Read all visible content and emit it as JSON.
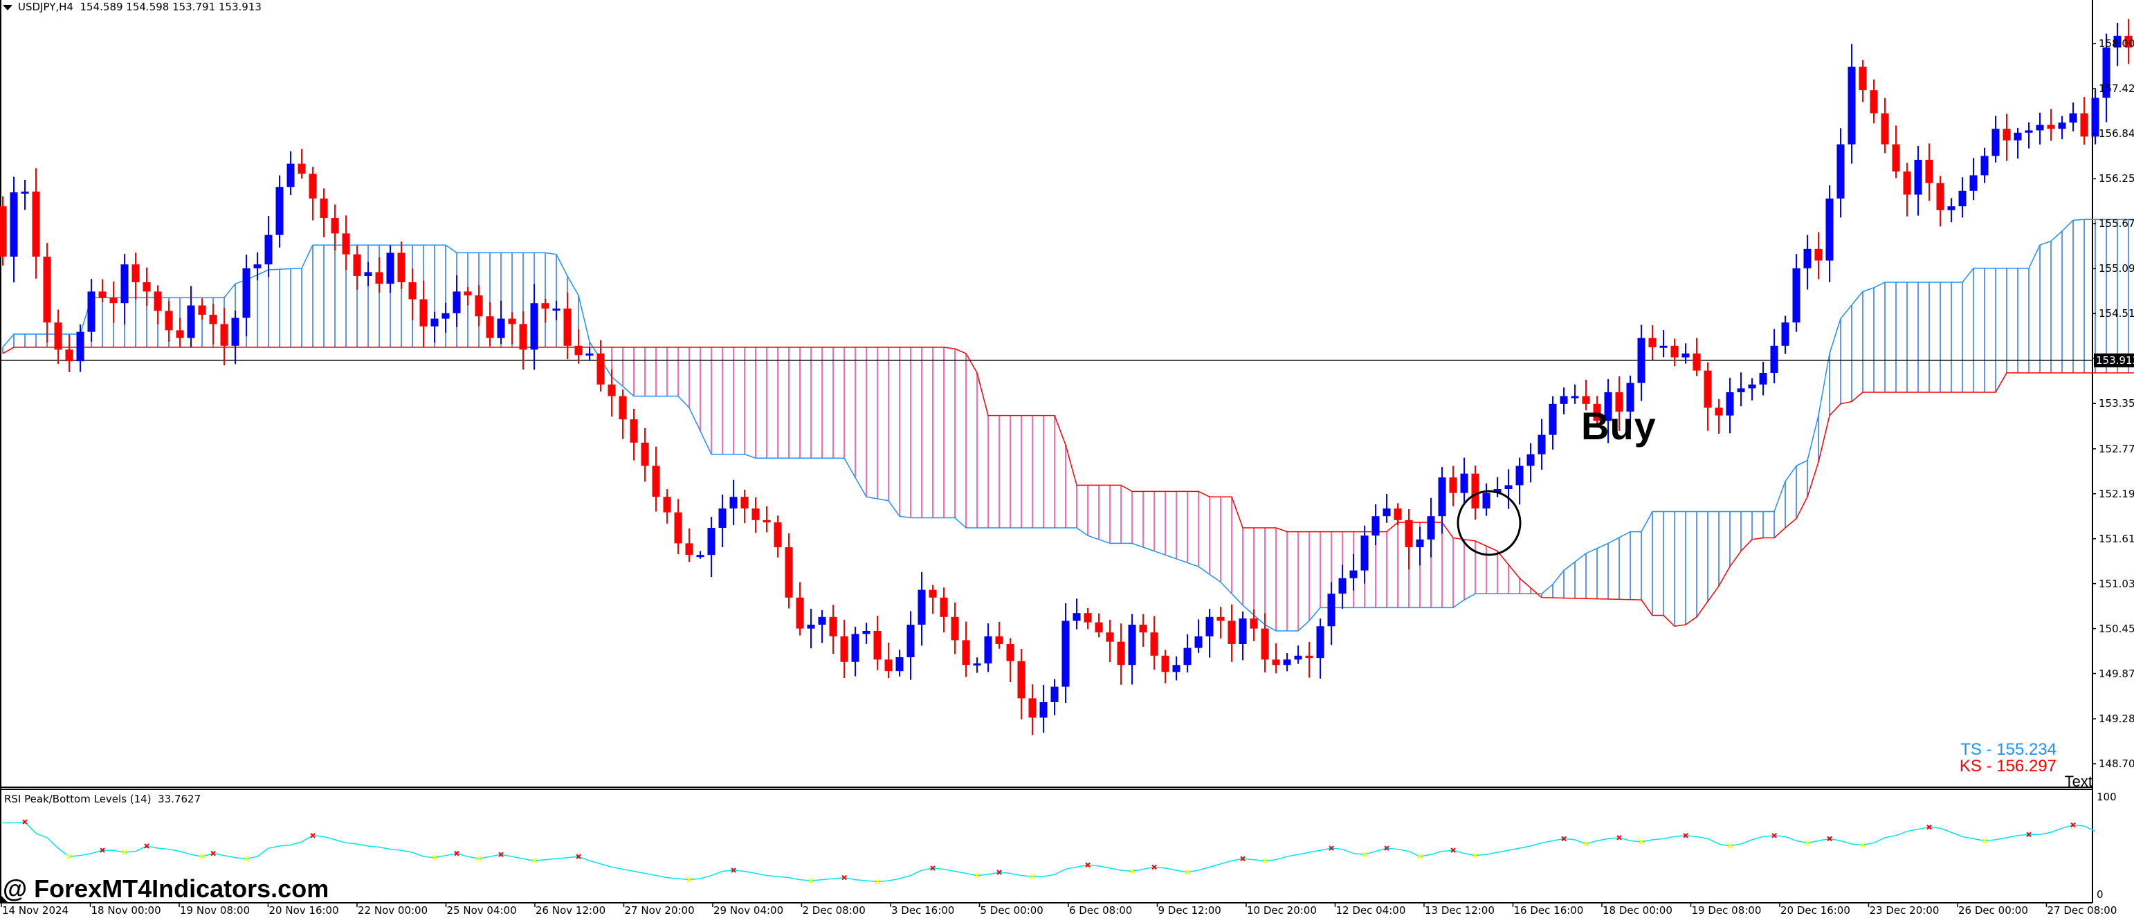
{
  "header": {
    "symbol": "USDJPY,H4",
    "ohlc": "154.589 154.598 153.791 153.913"
  },
  "colors": {
    "bull": "#0000ff",
    "bear": "#ff0000",
    "cloud_bull": "#6495ed",
    "cloud_bear": "#ff69b4",
    "senkou_a": "#1e90ff",
    "senkou_b": "#ff0000",
    "rsi_line": "#00e5ee",
    "rsi_peak": "#ff0000",
    "rsi_bottom": "#ffff00"
  },
  "price_axis": {
    "labels": [
      "158.000",
      "157.420",
      "156.840",
      "156.255",
      "155.675",
      "155.095",
      "154.515",
      "153.935",
      "153.355",
      "152.770",
      "152.190",
      "151.610",
      "151.030",
      "150.450",
      "149.870",
      "149.285",
      "148.705"
    ],
    "current_price": "153.913"
  },
  "annotations": {
    "buy_label": "Buy",
    "ts_label": "TS - 155.234",
    "ks_label": "KS - 156.297",
    "text_label": "Text",
    "watermark": "@ ForexMT4Indicators.com"
  },
  "rsi": {
    "title": "RSI Peak/Bottom Levels (14)  33.7627",
    "y_max": "100",
    "y_min": "0"
  },
  "time_axis": {
    "labels": [
      "14 Nov 2024",
      "18 Nov 00:00",
      "19 Nov 08:00",
      "20 Nov 16:00",
      "22 Nov 00:00",
      "25 Nov 04:00",
      "26 Nov 12:00",
      "27 Nov 20:00",
      "29 Nov 04:00",
      "2 Dec 08:00",
      "3 Dec 16:00",
      "5 Dec 00:00",
      "6 Dec 08:00",
      "9 Dec 12:00",
      "10 Dec 20:00",
      "12 Dec 04:00",
      "13 Dec 12:00",
      "16 Dec 16:00",
      "18 Dec 00:00",
      "19 Dec 08:00",
      "20 Dec 16:00",
      "23 Dec 20:00",
      "26 Dec 00:00",
      "27 Dec 08:00"
    ]
  },
  "chart_data": {
    "type": "candlestick",
    "title": "USDJPY,H4",
    "indicators": [
      "Ichimoku Kumo (Senkou A/B)",
      "RSI Peak/Bottom Levels (14)"
    ],
    "ylim": [
      148.4,
      158.55
    ],
    "current_price": 153.913,
    "closes": [
      155.25,
      156.08,
      156.09,
      155.25,
      154.4,
      154.05,
      153.9,
      154.28,
      154.8,
      154.72,
      154.65,
      155.15,
      154.92,
      154.8,
      154.55,
      154.3,
      154.2,
      154.62,
      154.5,
      154.38,
      154.1,
      154.46,
      155.1,
      155.15,
      155.53,
      156.15,
      156.45,
      156.32,
      156.0,
      155.75,
      155.55,
      155.28,
      155.0,
      155.05,
      154.9,
      155.3,
      154.92,
      154.7,
      154.35,
      154.45,
      154.52,
      154.8,
      154.75,
      154.48,
      154.2,
      154.45,
      154.38,
      154.05,
      154.65,
      154.58,
      154.58,
      154.1,
      153.98,
      154.0,
      153.6,
      153.45,
      153.15,
      152.85,
      152.55,
      152.15,
      151.95,
      151.55,
      151.4,
      151.4,
      151.75,
      152.0,
      152.15,
      152.0,
      151.85,
      151.82,
      151.5,
      150.85,
      150.45,
      150.5,
      150.6,
      150.35,
      150.02,
      150.38,
      150.42,
      150.05,
      149.9,
      150.08,
      150.5,
      150.95,
      150.85,
      150.6,
      150.3,
      149.98,
      150.0,
      150.35,
      150.25,
      150.03,
      149.55,
      149.3,
      149.5,
      149.7,
      150.55,
      150.65,
      150.53,
      150.4,
      150.28,
      149.98,
      150.5,
      150.4,
      150.1,
      149.89,
      149.98,
      150.2,
      150.35,
      150.6,
      150.55,
      150.25,
      150.58,
      150.45,
      150.05,
      149.98,
      150.05,
      150.1,
      150.07,
      150.48,
      150.9,
      151.1,
      151.2,
      151.65,
      151.9,
      152.0,
      151.85,
      151.5,
      151.6,
      151.9,
      152.4,
      152.2,
      152.45,
      152.0,
      152.2,
      152.25,
      152.3,
      152.55,
      152.7,
      152.95,
      153.35,
      153.45,
      153.45,
      153.35,
      153.13,
      153.5,
      153.25,
      153.62,
      154.2,
      154.08,
      154.1,
      153.95,
      154.0,
      153.78,
      153.3,
      153.2,
      153.5,
      153.55,
      153.6,
      153.75,
      154.1,
      154.4,
      155.1,
      155.35,
      155.2,
      156.0,
      156.7,
      157.7,
      157.4,
      157.1,
      156.7,
      156.35,
      156.05,
      156.5,
      156.2,
      155.85,
      155.9,
      156.1,
      156.3,
      156.55,
      156.9,
      156.75,
      156.85,
      156.88,
      156.95,
      156.9,
      156.98,
      157.1,
      156.8,
      157.3,
      157.95,
      158.1,
      157.95,
      157.55,
      157.78,
      157.7,
      157.55,
      157.75,
      157.85
    ],
    "x_labels": [
      "14 Nov 2024",
      "18 Nov 00:00",
      "19 Nov 08:00",
      "20 Nov 16:00",
      "22 Nov 00:00",
      "25 Nov 04:00",
      "26 Nov 12:00",
      "27 Nov 20:00",
      "29 Nov 04:00",
      "2 Dec 08:00",
      "3 Dec 16:00",
      "5 Dec 00:00",
      "6 Dec 08:00",
      "9 Dec 12:00",
      "10 Dec 20:00",
      "12 Dec 04:00",
      "13 Dec 12:00",
      "16 Dec 16:00",
      "18 Dec 00:00",
      "19 Dec 08:00",
      "20 Dec 16:00",
      "23 Dec 20:00",
      "26 Dec 00:00",
      "27 Dec 08:00"
    ],
    "y_ticks": [
      158.0,
      157.42,
      156.84,
      156.255,
      155.675,
      155.095,
      154.515,
      153.935,
      153.355,
      152.77,
      152.19,
      151.61,
      151.03,
      150.45,
      149.87,
      149.285,
      148.705
    ],
    "cloud": {
      "senkou_a": [
        [
          0,
          154.08
        ],
        [
          1,
          154.25
        ],
        [
          7,
          154.25
        ],
        [
          8,
          154.72
        ],
        [
          20,
          154.72
        ],
        [
          21,
          154.9
        ],
        [
          22,
          154.95
        ],
        [
          24,
          155.08
        ],
        [
          27,
          155.1
        ],
        [
          28,
          155.4
        ],
        [
          40,
          155.4
        ],
        [
          41,
          155.3
        ],
        [
          49,
          155.3
        ],
        [
          50,
          155.28
        ],
        [
          51,
          155.0
        ],
        [
          52,
          154.75
        ],
        [
          53,
          154.15
        ],
        [
          55,
          153.7
        ],
        [
          57,
          153.45
        ],
        [
          61,
          153.45
        ],
        [
          62,
          153.3
        ],
        [
          64,
          152.7
        ],
        [
          67,
          152.7
        ],
        [
          68,
          152.65
        ],
        [
          76,
          152.65
        ],
        [
          77,
          152.4
        ],
        [
          78,
          152.15
        ],
        [
          80,
          152.1
        ],
        [
          81,
          151.9
        ],
        [
          82,
          151.88
        ],
        [
          86,
          151.88
        ],
        [
          87,
          151.75
        ],
        [
          97,
          151.75
        ],
        [
          98,
          151.65
        ],
        [
          100,
          151.55
        ],
        [
          102,
          151.55
        ],
        [
          103,
          151.5
        ],
        [
          104,
          151.45
        ],
        [
          106,
          151.35
        ],
        [
          108,
          151.25
        ],
        [
          110,
          151.05
        ],
        [
          112,
          150.75
        ],
        [
          114,
          150.5
        ],
        [
          115,
          150.42
        ],
        [
          117,
          150.42
        ],
        [
          118,
          150.55
        ],
        [
          119,
          150.72
        ],
        [
          131,
          150.72
        ],
        [
          132,
          150.82
        ],
        [
          133,
          150.9
        ],
        [
          139,
          150.9
        ],
        [
          140,
          151.02
        ],
        [
          141,
          151.2
        ],
        [
          143,
          151.42
        ],
        [
          145,
          151.55
        ],
        [
          147,
          151.7
        ],
        [
          148,
          151.7
        ],
        [
          149,
          151.96
        ],
        [
          160,
          151.96
        ],
        [
          161,
          152.35
        ],
        [
          162,
          152.55
        ],
        [
          163,
          152.62
        ],
        [
          164,
          153.2
        ],
        [
          165,
          154.0
        ],
        [
          166,
          154.45
        ],
        [
          168,
          154.8
        ],
        [
          169,
          154.85
        ],
        [
          170,
          154.92
        ],
        [
          177,
          154.92
        ],
        [
          178,
          155.1
        ],
        [
          179,
          155.1
        ],
        [
          183,
          155.1
        ],
        [
          184,
          155.4
        ],
        [
          185,
          155.45
        ],
        [
          186,
          155.58
        ],
        [
          187,
          155.72
        ],
        [
          188,
          155.73
        ]
      ],
      "senkou_b": [
        [
          0,
          154.0
        ],
        [
          1,
          154.08
        ],
        [
          85,
          154.08
        ],
        [
          86,
          154.06
        ],
        [
          87,
          154.0
        ],
        [
          88,
          153.75
        ],
        [
          89,
          153.2
        ],
        [
          90,
          153.2
        ],
        [
          95,
          153.2
        ],
        [
          96,
          152.82
        ],
        [
          97,
          152.3
        ],
        [
          98,
          152.3
        ],
        [
          101,
          152.3
        ],
        [
          102,
          152.22
        ],
        [
          108,
          152.22
        ],
        [
          109,
          152.15
        ],
        [
          111,
          152.15
        ],
        [
          112,
          151.75
        ],
        [
          115,
          151.75
        ],
        [
          116,
          151.7
        ],
        [
          125,
          151.7
        ],
        [
          126,
          151.82
        ],
        [
          130,
          151.82
        ],
        [
          131,
          151.62
        ],
        [
          133,
          151.58
        ],
        [
          135,
          151.45
        ],
        [
          137,
          151.1
        ],
        [
          139,
          150.85
        ],
        [
          148,
          150.82
        ],
        [
          149,
          150.62
        ],
        [
          150,
          150.62
        ],
        [
          151,
          150.48
        ],
        [
          152,
          150.5
        ],
        [
          153,
          150.6
        ],
        [
          154,
          150.8
        ],
        [
          155,
          151.0
        ],
        [
          156,
          151.25
        ],
        [
          157,
          151.45
        ],
        [
          158,
          151.6
        ],
        [
          159,
          151.62
        ],
        [
          160,
          151.62
        ],
        [
          161,
          151.75
        ],
        [
          162,
          151.87
        ],
        [
          163,
          152.15
        ],
        [
          164,
          152.6
        ],
        [
          165,
          153.2
        ],
        [
          166,
          153.35
        ],
        [
          167,
          153.38
        ],
        [
          168,
          153.5
        ],
        [
          169,
          153.5
        ],
        [
          177,
          153.5
        ],
        [
          178,
          153.5
        ],
        [
          180,
          153.5
        ],
        [
          181,
          153.75
        ],
        [
          188,
          153.75
        ]
      ]
    },
    "rsi_series": [
      72,
      72,
      73,
      62,
      58,
      48,
      40,
      41,
      43,
      46,
      46,
      44,
      45,
      50,
      48,
      47,
      45,
      42,
      40,
      43,
      41,
      39,
      38,
      40,
      48,
      50,
      51,
      54,
      60,
      59,
      56,
      53,
      52,
      50,
      49,
      47,
      46,
      44,
      40,
      39,
      41,
      43,
      40,
      38,
      40,
      42,
      40,
      38,
      36,
      37,
      38,
      39,
      40,
      36,
      33,
      30,
      28,
      26,
      24,
      22,
      20,
      19,
      18,
      19,
      22,
      26,
      27,
      26,
      24,
      22,
      21,
      20,
      18,
      17,
      18,
      19,
      20,
      18,
      17,
      16,
      17,
      19,
      22,
      27,
      29,
      28,
      26,
      24,
      22,
      23,
      25,
      24,
      22,
      21,
      21,
      23,
      28,
      30,
      32,
      31,
      29,
      27,
      26,
      28,
      30,
      29,
      27,
      25,
      27,
      30,
      33,
      36,
      38,
      37,
      36,
      37,
      40,
      42,
      44,
      46,
      48,
      47,
      43,
      42,
      45,
      48,
      47,
      45,
      40,
      42,
      45,
      46,
      43,
      41,
      42,
      44,
      46,
      48,
      50,
      53,
      55,
      57,
      56,
      52,
      55,
      57,
      58,
      55,
      54,
      56,
      57,
      59,
      60,
      59,
      57,
      52,
      50,
      52,
      56,
      59,
      60,
      59,
      55,
      53,
      55,
      57,
      55,
      52,
      51,
      53,
      58,
      60,
      64,
      66,
      68,
      67,
      63,
      59,
      57,
      55,
      56,
      58,
      60,
      61,
      61,
      63,
      67,
      70,
      69,
      64
    ],
    "rsi_ylim": [
      0,
      100
    ]
  }
}
